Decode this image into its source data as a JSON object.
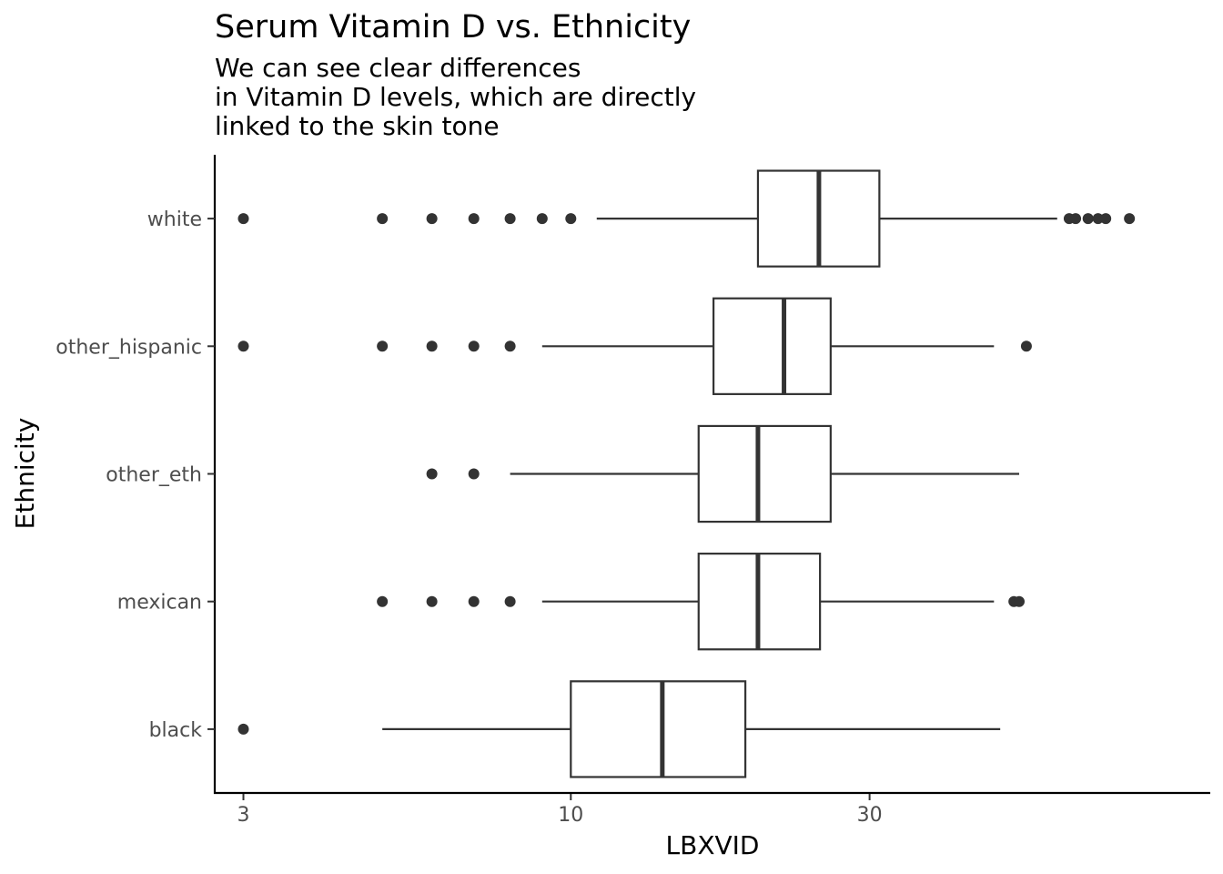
{
  "chart_data": {
    "type": "boxplot",
    "title": "Serum Vitamin D vs. Ethnicity",
    "subtitle": [
      "We can see clear differences",
      "in Vitamin D levels, which are directly",
      "linked to the skin tone"
    ],
    "xlabel": "LBXVID",
    "ylabel": "Ethnicity",
    "x_scale": "log10",
    "xlim": [
      2.7,
      105
    ],
    "x_ticks": [
      3,
      10,
      30
    ],
    "x_tick_labels": [
      "3",
      "10",
      "30"
    ],
    "grid": false,
    "legend": "none",
    "categories": [
      "white",
      "other_hispanic",
      "other_eth",
      "mexican",
      "black"
    ],
    "boxes": [
      {
        "category": "white",
        "whisker_low": 11.0,
        "q1": 19.9,
        "median": 24.9,
        "q3": 31.1,
        "whisker_high": 59.8,
        "outliers": [
          3.0,
          5.0,
          6.0,
          7.0,
          8.0,
          9.0,
          10.0,
          62.5,
          64.0,
          67.0,
          69.5,
          71.5,
          78.0
        ]
      },
      {
        "category": "other_hispanic",
        "whisker_low": 9.0,
        "q1": 16.9,
        "median": 21.9,
        "q3": 26.0,
        "whisker_high": 47.4,
        "outliers": [
          3.0,
          5.0,
          6.0,
          7.0,
          8.0,
          53.4
        ]
      },
      {
        "category": "other_eth",
        "whisker_low": 8.0,
        "q1": 16.0,
        "median": 19.9,
        "q3": 26.0,
        "whisker_high": 52.0,
        "outliers": [
          6.0,
          7.0
        ]
      },
      {
        "category": "mexican",
        "whisker_low": 9.0,
        "q1": 16.0,
        "median": 19.9,
        "q3": 25.0,
        "whisker_high": 47.4,
        "outliers": [
          5.0,
          6.0,
          7.0,
          8.0,
          51.0,
          52.0
        ]
      },
      {
        "category": "black",
        "whisker_low": 5.0,
        "q1": 10.0,
        "median": 14.0,
        "q3": 19.0,
        "whisker_high": 48.5,
        "outliers": [
          3.0
        ]
      }
    ],
    "colors": {
      "box_fill": "#ffffff",
      "box_stroke": "#333333",
      "axis": "#000000",
      "tick_text": "#4d4d4d"
    }
  }
}
